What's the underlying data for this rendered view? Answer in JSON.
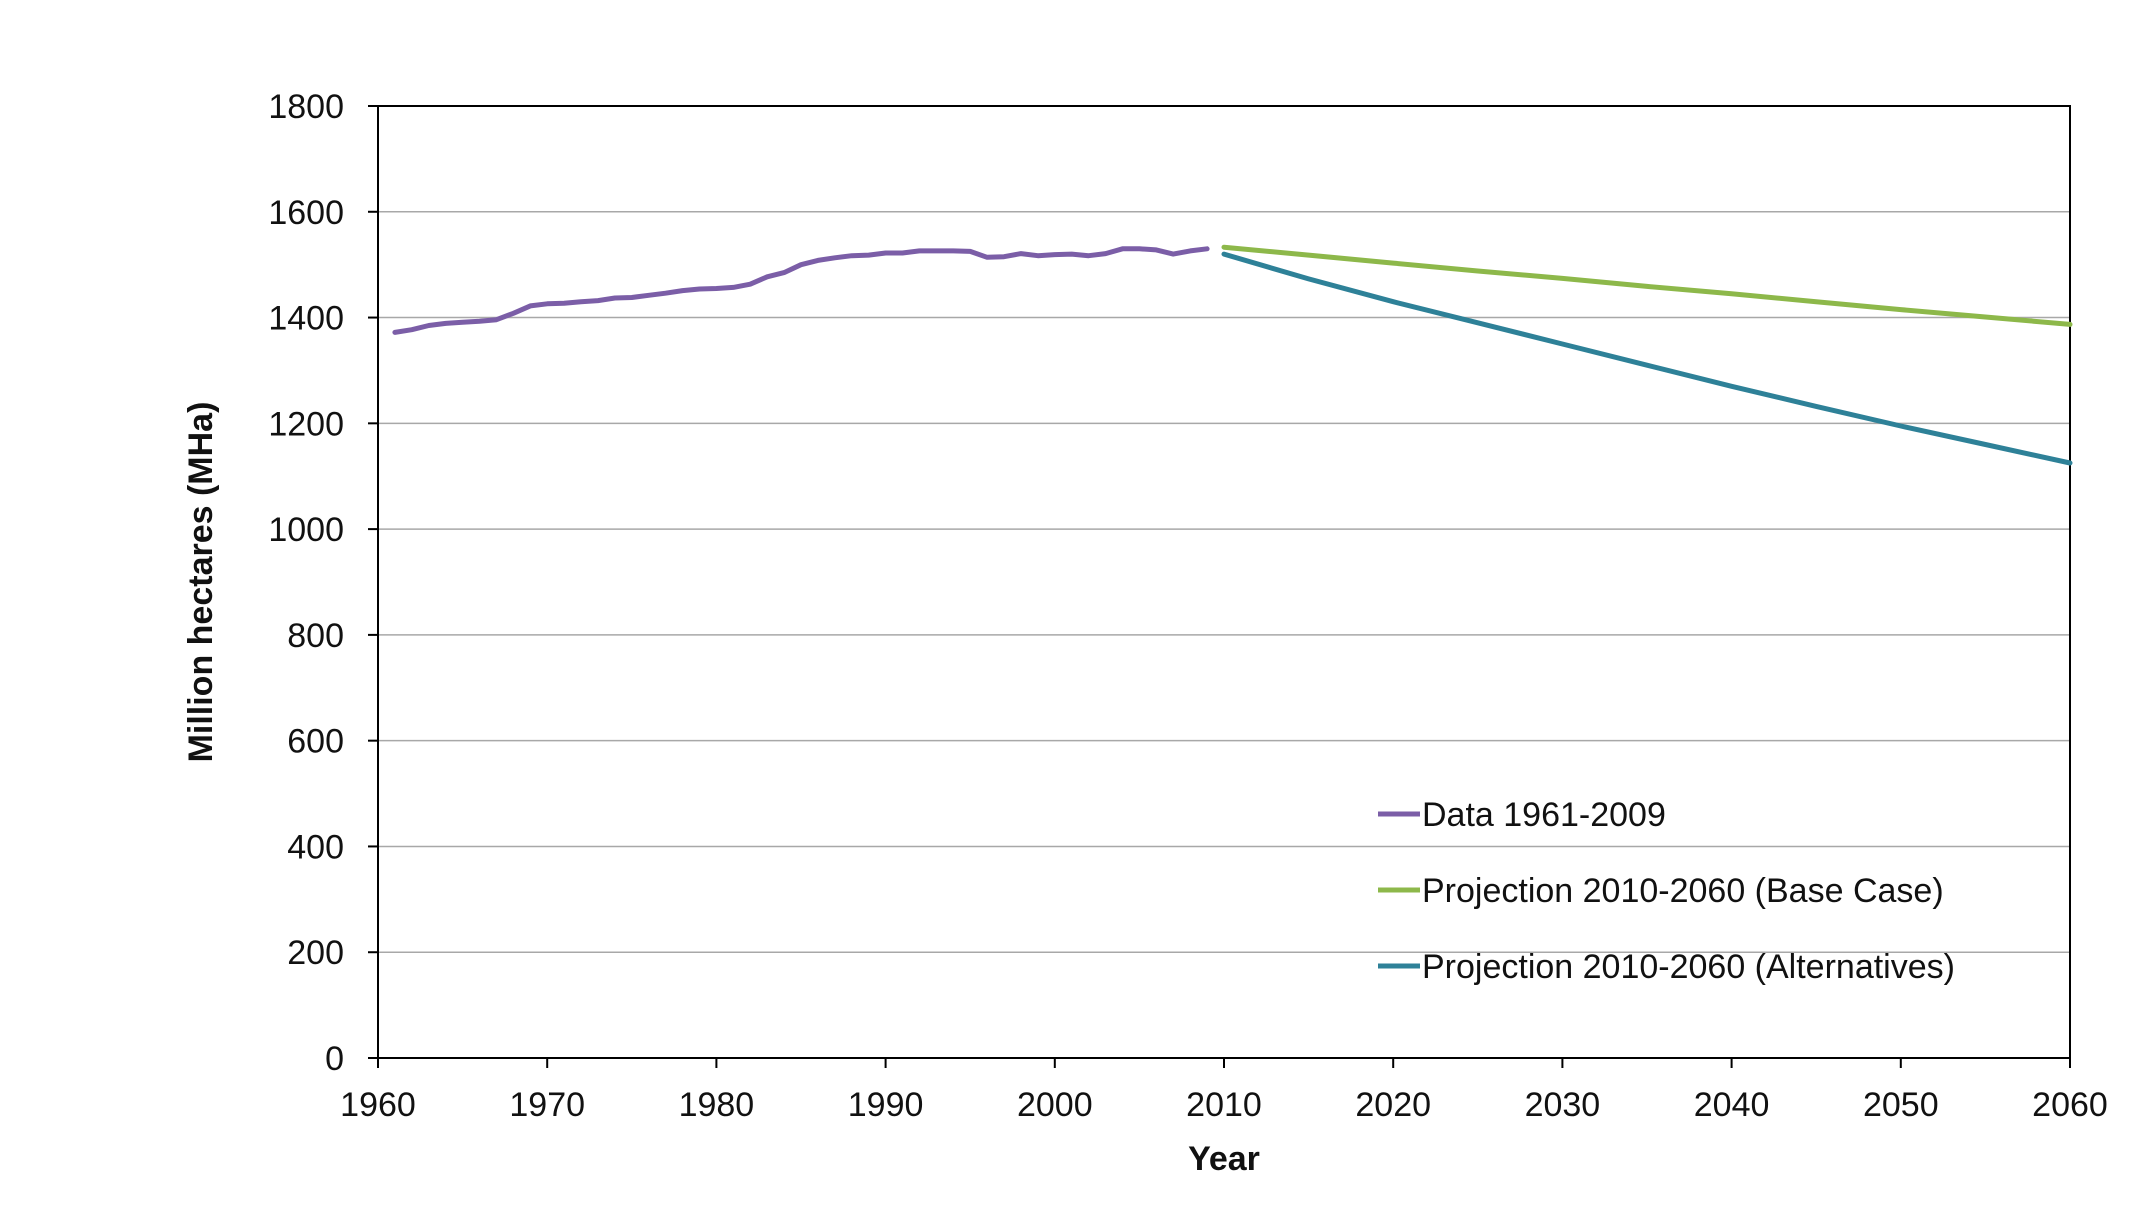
{
  "chart_data": {
    "type": "line",
    "xlabel": "Year",
    "ylabel": "Million hectares (MHa)",
    "xlim": [
      1960,
      2060
    ],
    "ylim": [
      0,
      1800
    ],
    "xticks": [
      1960,
      1970,
      1980,
      1990,
      2000,
      2010,
      2020,
      2030,
      2040,
      2050,
      2060
    ],
    "yticks": [
      0,
      200,
      400,
      600,
      800,
      1000,
      1200,
      1400,
      1600,
      1800
    ],
    "xtick_labels": [
      "1960",
      "1970",
      "1980",
      "1990",
      "2000",
      "2010",
      "2020",
      "2030",
      "2040",
      "2050",
      "2060"
    ],
    "ytick_labels": [
      "0",
      "200",
      "400",
      "600",
      "800",
      "1000",
      "1200",
      "1400",
      "1600",
      "1800"
    ],
    "grid": "horizontal",
    "legend_position": "bottom-right inside plot",
    "series": [
      {
        "name": "Data 1961-2009",
        "color": "#7b5ea7",
        "x": [
          1961,
          1962,
          1963,
          1964,
          1965,
          1966,
          1967,
          1968,
          1969,
          1970,
          1971,
          1972,
          1973,
          1974,
          1975,
          1976,
          1977,
          1978,
          1979,
          1980,
          1981,
          1982,
          1983,
          1984,
          1985,
          1986,
          1987,
          1988,
          1989,
          1990,
          1991,
          1992,
          1993,
          1994,
          1995,
          1996,
          1997,
          1998,
          1999,
          2000,
          2001,
          2002,
          2003,
          2004,
          2005,
          2006,
          2007,
          2008,
          2009
        ],
        "y": [
          1372,
          1377,
          1385,
          1389,
          1391,
          1393,
          1396,
          1408,
          1422,
          1426,
          1427,
          1430,
          1432,
          1437,
          1438,
          1442,
          1446,
          1451,
          1454,
          1455,
          1457,
          1463,
          1477,
          1485,
          1500,
          1508,
          1513,
          1517,
          1518,
          1522,
          1522,
          1526,
          1526,
          1526,
          1525,
          1514,
          1515,
          1521,
          1517,
          1519,
          1520,
          1517,
          1521,
          1530,
          1530,
          1528,
          1520,
          1526,
          1530
        ]
      },
      {
        "name": "Projection 2010-2060 (Base Case)",
        "color": "#8db84a",
        "x": [
          2010,
          2015,
          2020,
          2025,
          2030,
          2035,
          2040,
          2045,
          2050,
          2055,
          2060
        ],
        "y": [
          1533,
          1518,
          1503,
          1488,
          1474,
          1459,
          1445,
          1430,
          1415,
          1401,
          1387
        ]
      },
      {
        "name": "Projection 2010-2060 (Alternatives)",
        "color": "#2e8198",
        "x": [
          2010,
          2015,
          2020,
          2025,
          2030,
          2035,
          2040,
          2045,
          2050,
          2055,
          2060
        ],
        "y": [
          1520,
          1473,
          1430,
          1390,
          1350,
          1310,
          1270,
          1232,
          1195,
          1160,
          1125
        ]
      }
    ]
  }
}
